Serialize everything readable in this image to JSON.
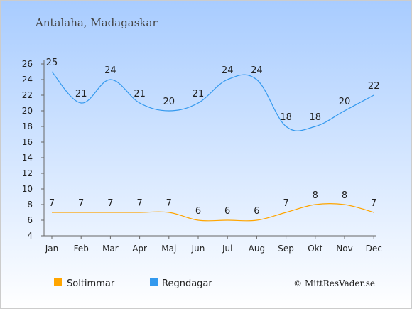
{
  "chart_data": {
    "type": "line",
    "title": "Antalaha, Madagaskar",
    "categories": [
      "Jan",
      "Feb",
      "Mar",
      "Apr",
      "Maj",
      "Jun",
      "Jul",
      "Aug",
      "Sep",
      "Okt",
      "Nov",
      "Dec"
    ],
    "ylim": [
      4,
      26
    ],
    "yticks": [
      4,
      6,
      8,
      10,
      12,
      14,
      16,
      18,
      20,
      22,
      24,
      26
    ],
    "series": [
      {
        "name": "Soltimmar",
        "color": "#FFA500",
        "values": [
          7,
          7,
          7,
          7,
          7,
          6,
          6,
          6,
          7,
          8,
          8,
          7
        ]
      },
      {
        "name": "Regndagar",
        "color": "#3399EE",
        "values": [
          25,
          21,
          24,
          21,
          20,
          21,
          24,
          24,
          18,
          18,
          20,
          22
        ]
      }
    ],
    "legend_position": "bottom-left",
    "grid": false,
    "background_gradient": [
      "#A8CCFF",
      "#FFFFFF"
    ]
  },
  "credit": "© MittResVader.se"
}
